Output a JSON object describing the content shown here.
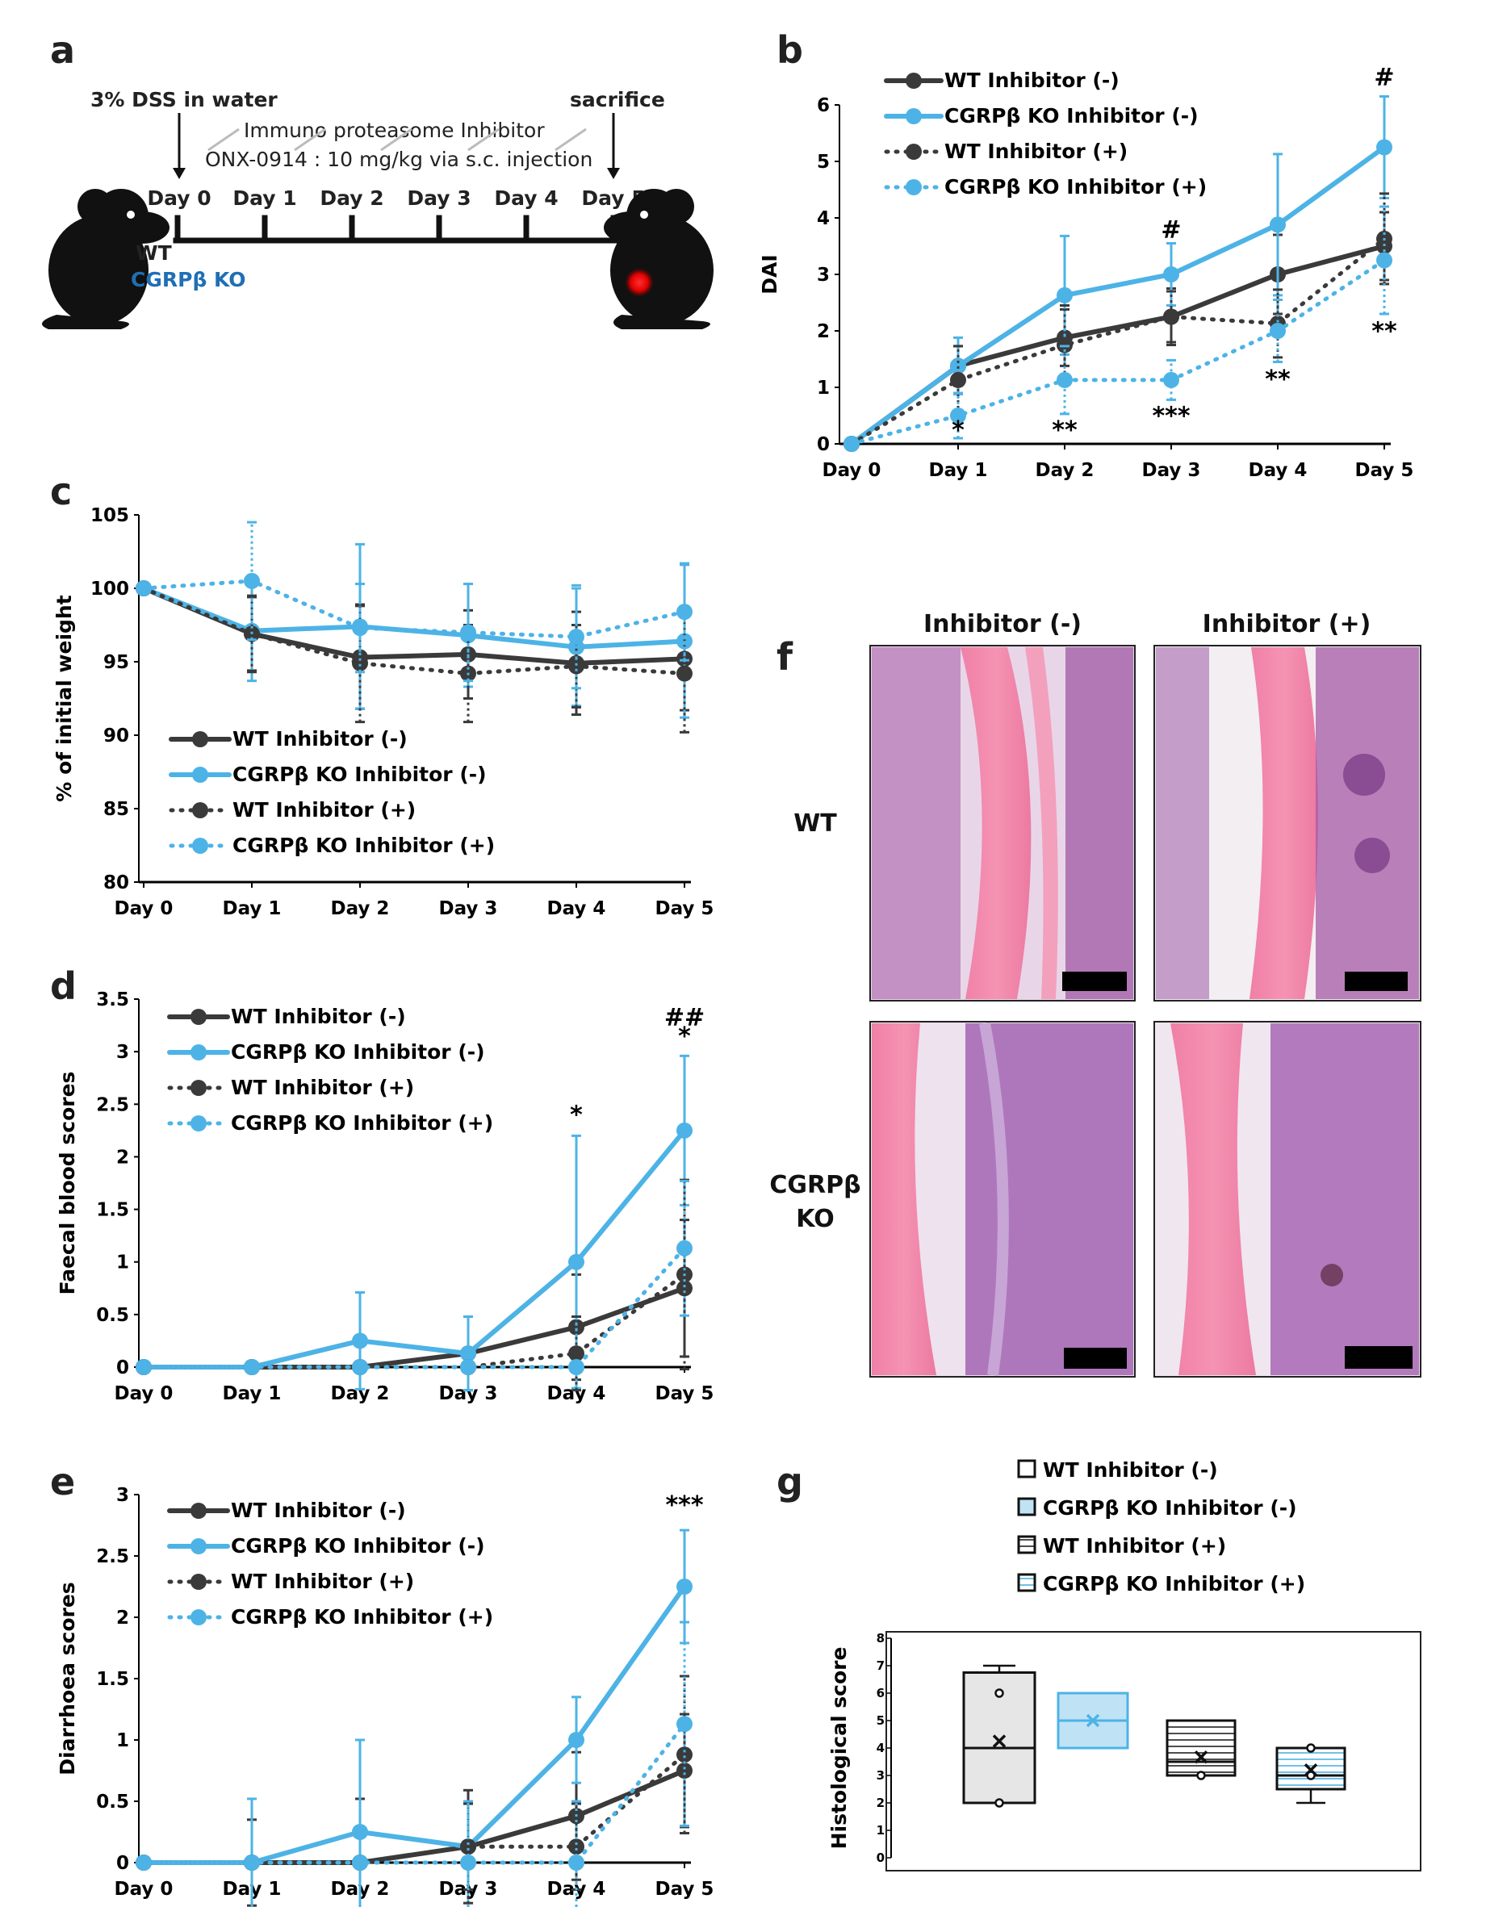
{
  "colors": {
    "wt": "#3a3a3a",
    "ko": "#4db3e6",
    "ko_box": "#bfe3f5",
    "wt_box": "#e6e6e6"
  },
  "panel_a": {
    "letter": "a",
    "dss_label": "3% DSS in water",
    "sacrifice_label": "sacrifice",
    "inhibitor_line1": "Immuno proteasome Inhibitor",
    "inhibitor_line2": "ONX-0914 : 10 mg/kg via s.c. injection",
    "days": [
      "Day 0",
      "Day 1",
      "Day 2",
      "Day 3",
      "Day 4",
      "Day 5"
    ],
    "mouse_wt_label": "WT",
    "mouse_ko_label": "CGRPβ KO"
  },
  "panel_f": {
    "letter": "f",
    "col_headers": [
      "Inhibitor (-)",
      "Inhibitor (+)"
    ],
    "row_label_wt": "WT",
    "row_label_ko_1": "CGRPβ",
    "row_label_ko_2": "KO"
  },
  "chart_data": [
    {
      "id": "b",
      "letter": "b",
      "type": "line",
      "ylabel": "DAI",
      "categories": [
        "Day 0",
        "Day 1",
        "Day 2",
        "Day 3",
        "Day 4",
        "Day 5"
      ],
      "ylim": [
        0,
        6
      ],
      "yticks": [
        0,
        1,
        2,
        3,
        4,
        5,
        6
      ],
      "legend": [
        "WT Inhibitor (-)",
        "CGRPβ KO Inhibitor (-)",
        "WT Inhibitor (+)",
        "CGRPβ KO Inhibitor (+)"
      ],
      "series": [
        {
          "name": "WT Inhibitor (-)",
          "values": [
            0,
            1.38,
            1.88,
            2.25,
            3.0,
            3.5
          ],
          "err": [
            0,
            0.35,
            0.5,
            0.5,
            0.7,
            0.6
          ]
        },
        {
          "name": "CGRPβ KO Inhibitor (-)",
          "values": [
            0,
            1.38,
            2.63,
            3.0,
            3.88,
            5.25
          ],
          "err": [
            0,
            0.5,
            1.05,
            0.55,
            1.25,
            0.9
          ]
        },
        {
          "name": "WT Inhibitor (+)",
          "values": [
            0,
            1.13,
            1.75,
            2.25,
            2.13,
            3.63
          ],
          "err": [
            0,
            0.6,
            0.7,
            0.45,
            0.6,
            0.8
          ]
        },
        {
          "name": "CGRPβ KO Inhibitor (+)",
          "values": [
            0,
            0.5,
            1.13,
            1.13,
            2.0,
            3.25
          ],
          "err": [
            0,
            0.4,
            0.6,
            0.35,
            0.55,
            0.95
          ]
        }
      ],
      "annotations": [
        {
          "day": "Day 1",
          "text": "*",
          "y": 0.1
        },
        {
          "day": "Day 2",
          "text": "**",
          "y": 0.1
        },
        {
          "day": "Day 3",
          "text": "#",
          "y": 3.65
        },
        {
          "day": "Day 3",
          "text": "***",
          "y": 0.35
        },
        {
          "day": "Day 4",
          "text": "**",
          "y": 1.0
        },
        {
          "day": "Day 5",
          "text": "#",
          "y": 6.35
        },
        {
          "day": "Day 5",
          "text": "**",
          "y": 1.85
        }
      ]
    },
    {
      "id": "c",
      "letter": "c",
      "type": "line",
      "ylabel": "% of initial weight",
      "categories": [
        "Day 0",
        "Day 1",
        "Day 2",
        "Day 3",
        "Day 4",
        "Day 5"
      ],
      "ylim": [
        80,
        105
      ],
      "yticks": [
        80,
        85,
        90,
        95,
        100,
        105
      ],
      "legend": [
        "WT Inhibitor (-)",
        "CGRPβ KO Inhibitor (-)",
        "WT Inhibitor (+)",
        "CGRPβ KO Inhibitor (+)"
      ],
      "series": [
        {
          "name": "WT Inhibitor (-)",
          "values": [
            100,
            96.9,
            95.3,
            95.5,
            94.9,
            95.2
          ],
          "err": [
            0,
            2.5,
            3.5,
            3.0,
            3.5,
            3.5
          ]
        },
        {
          "name": "CGRPβ KO Inhibitor (-)",
          "values": [
            100,
            97.1,
            97.4,
            96.8,
            96.0,
            96.4
          ],
          "err": [
            0,
            3.4,
            5.6,
            3.5,
            4.0,
            5.2
          ]
        },
        {
          "name": "WT Inhibitor (+)",
          "values": [
            100,
            96.9,
            94.9,
            94.2,
            94.7,
            94.2
          ],
          "err": [
            0,
            2.6,
            4.0,
            3.3,
            2.8,
            4.0
          ]
        },
        {
          "name": "CGRPβ KO Inhibitor (+)",
          "values": [
            100,
            100.5,
            97.3,
            97.0,
            96.7,
            98.4
          ],
          "err": [
            0,
            4.0,
            3.0,
            3.3,
            3.5,
            3.3
          ]
        }
      ],
      "annotations": []
    },
    {
      "id": "d",
      "letter": "d",
      "type": "line",
      "ylabel": "Faecal blood scores",
      "categories": [
        "Day 0",
        "Day 1",
        "Day 2",
        "Day 3",
        "Day 4",
        "Day 5"
      ],
      "ylim": [
        0,
        3.5
      ],
      "yticks": [
        0,
        0.5,
        1,
        1.5,
        2,
        2.5,
        3,
        3.5
      ],
      "legend": [
        "WT Inhibitor (-)",
        "CGRPβ  KO Inhibitor (-)",
        "WT Inhibitor (+)",
        "CGRPβ KO Inhibitor (+)"
      ],
      "series": [
        {
          "name": "WT Inhibitor (-)",
          "values": [
            0,
            0,
            0,
            0.13,
            0.38,
            0.75
          ],
          "err": [
            0,
            0,
            0,
            0.35,
            0.5,
            0.65
          ]
        },
        {
          "name": "CGRPβ KO Inhibitor (-)",
          "values": [
            0,
            0,
            0.25,
            0.13,
            1.0,
            2.25
          ],
          "err": [
            0,
            0,
            0.46,
            0.35,
            1.2,
            0.71
          ]
        },
        {
          "name": "WT Inhibitor (+)",
          "values": [
            0,
            0,
            0,
            0,
            0.13,
            0.88
          ],
          "err": [
            0,
            0,
            0,
            0,
            0.35,
            0.9
          ]
        },
        {
          "name": "CGRPβ KO Inhibitor (+)",
          "values": [
            0,
            0,
            0,
            0,
            0,
            1.13
          ],
          "err": [
            0,
            0,
            0,
            0,
            0,
            0.64
          ]
        }
      ],
      "annotations": [
        {
          "day": "Day 4",
          "text": "*",
          "y": 2.32
        },
        {
          "day": "Day 5",
          "text": "##",
          "y": 3.25
        },
        {
          "day": "Day 5",
          "text": "*",
          "y": 3.07
        }
      ]
    },
    {
      "id": "e",
      "letter": "e",
      "type": "line",
      "ylabel": "Diarrhoea scores",
      "categories": [
        "Day 0",
        "Day 1",
        "Day 2",
        "Day 3",
        "Day 4",
        "Day 5"
      ],
      "ylim": [
        0,
        3
      ],
      "yticks": [
        0,
        0.5,
        1,
        1.5,
        2,
        2.5,
        3
      ],
      "legend": [
        "WT Inhibitor (-)",
        "CGRPβ KO Inhibitor (-)",
        "WT Inhibitor (+)",
        "CGRPβ KO Inhibitor (+)"
      ],
      "series": [
        {
          "name": "WT Inhibitor (-)",
          "values": [
            0,
            0,
            0,
            0.13,
            0.38,
            0.75
          ],
          "err": [
            0,
            0.35,
            0.52,
            0.46,
            0.52,
            0.46
          ]
        },
        {
          "name": "CGRPβ KO Inhibitor (-)",
          "values": [
            0,
            0,
            0.25,
            0.13,
            1.0,
            2.25
          ],
          "err": [
            0,
            0.52,
            0.75,
            0.35,
            0.35,
            0.46
          ]
        },
        {
          "name": "WT Inhibitor (+)",
          "values": [
            0,
            0,
            0,
            0.13,
            0.13,
            0.88
          ],
          "err": [
            0,
            0,
            0,
            0.35,
            0.35,
            0.64
          ]
        },
        {
          "name": "CGRPβ KO Inhibitor (+)",
          "values": [
            0,
            0,
            0,
            0,
            0,
            1.13
          ],
          "err": [
            0,
            0,
            0,
            0.5,
            0.5,
            0.83
          ]
        }
      ],
      "annotations": [
        {
          "day": "Day 5",
          "text": "***",
          "y": 2.85
        }
      ]
    },
    {
      "id": "g",
      "letter": "g",
      "type": "box",
      "ylabel": "Histological score",
      "ylim": [
        0,
        8
      ],
      "yticks": [
        0,
        1,
        2,
        3,
        4,
        5,
        6,
        7,
        8
      ],
      "legend": [
        "WT Inhibitor (-)",
        "CGRPβ KO Inhibitor (-)",
        "WT Inhibitor (+)",
        "CGRPβ KO Inhibitor (+)"
      ],
      "boxes": [
        {
          "name": "WT Inhibitor (-)",
          "min": 2,
          "q1": 2,
          "median": 4,
          "q3": 6.75,
          "max": 7,
          "mean": 4.25,
          "points": [
            6,
            2
          ]
        },
        {
          "name": "CGRPβ KO Inhibitor (-)",
          "min": 4,
          "q1": 4,
          "median": 5,
          "q3": 6,
          "max": 6,
          "mean": 5,
          "points": []
        },
        {
          "name": "WT Inhibitor (+)",
          "min": 3,
          "q1": 3,
          "median": 3.5,
          "q3": 5,
          "max": 5,
          "mean": 3.67,
          "points": [
            3
          ]
        },
        {
          "name": "CGRPβ KO Inhibitor (+)",
          "min": 2,
          "q1": 2.5,
          "median": 3,
          "q3": 4,
          "max": 4,
          "mean": 3.2,
          "points": [
            4,
            3
          ]
        }
      ]
    }
  ]
}
